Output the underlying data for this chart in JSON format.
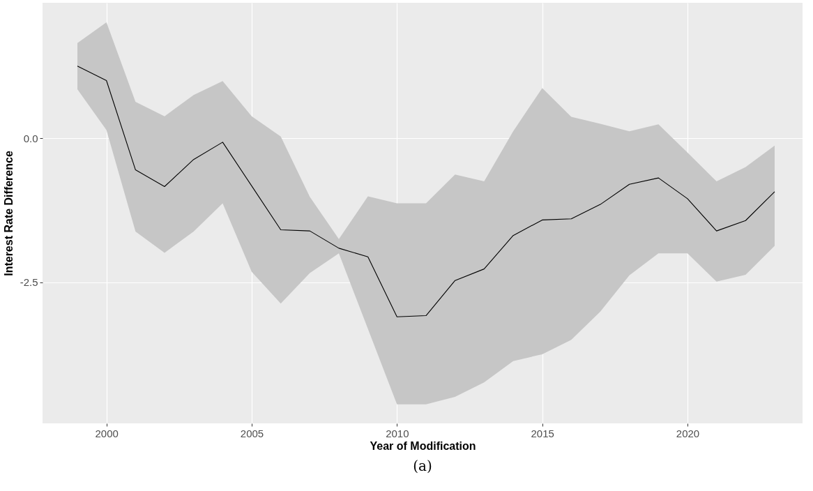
{
  "chart_data": {
    "type": "line",
    "xlabel": "Year of Modification",
    "ylabel": "Interest Rate Difference",
    "annotations": [
      "(a)"
    ],
    "x": [
      1999,
      2000,
      2001,
      2002,
      2003,
      2004,
      2005,
      2006,
      2007,
      2008,
      2009,
      2010,
      2011,
      2012,
      2013,
      2014,
      2015,
      2016,
      2017,
      2018,
      2019,
      2020,
      2021,
      2022,
      2023
    ],
    "series": [
      {
        "color": "#000000",
        "values": [
          1.25,
          1.0,
          -0.55,
          -0.84,
          -0.37,
          -0.07,
          -0.83,
          -1.59,
          -1.61,
          -1.91,
          -2.06,
          -3.1,
          -3.08,
          -2.47,
          -2.27,
          -1.69,
          -1.42,
          -1.4,
          -1.15,
          -0.8,
          -0.69,
          -1.05,
          -1.61,
          -1.43,
          -0.93
        ],
        "lower": [
          0.85,
          0.14,
          -1.62,
          -1.99,
          -1.62,
          -1.13,
          -2.32,
          -2.87,
          -2.34,
          -2.0,
          -3.31,
          -4.62,
          -4.62,
          -4.49,
          -4.24,
          -3.87,
          -3.75,
          -3.5,
          -3.01,
          -2.38,
          -2.0,
          -2.0,
          -2.49,
          -2.37,
          -1.87
        ],
        "upper": [
          1.65,
          2.01,
          0.63,
          0.38,
          0.75,
          0.99,
          0.38,
          0.03,
          -1.02,
          -1.75,
          -1.01,
          -1.13,
          -1.13,
          -0.63,
          -0.75,
          0.12,
          0.87,
          0.37,
          0.25,
          0.12,
          0.24,
          -0.25,
          -0.75,
          -0.5,
          -0.13
        ]
      }
    ],
    "xlim": [
      1997.8,
      2023.96
    ],
    "ylim": [
      -4.95,
      2.35
    ],
    "xticks": [
      2000,
      2005,
      2010,
      2015,
      2020
    ],
    "yticks": [
      {
        "value": -2.5,
        "label": "-2.5"
      },
      {
        "value": 0,
        "label": "0.0"
      }
    ],
    "grid": true
  }
}
